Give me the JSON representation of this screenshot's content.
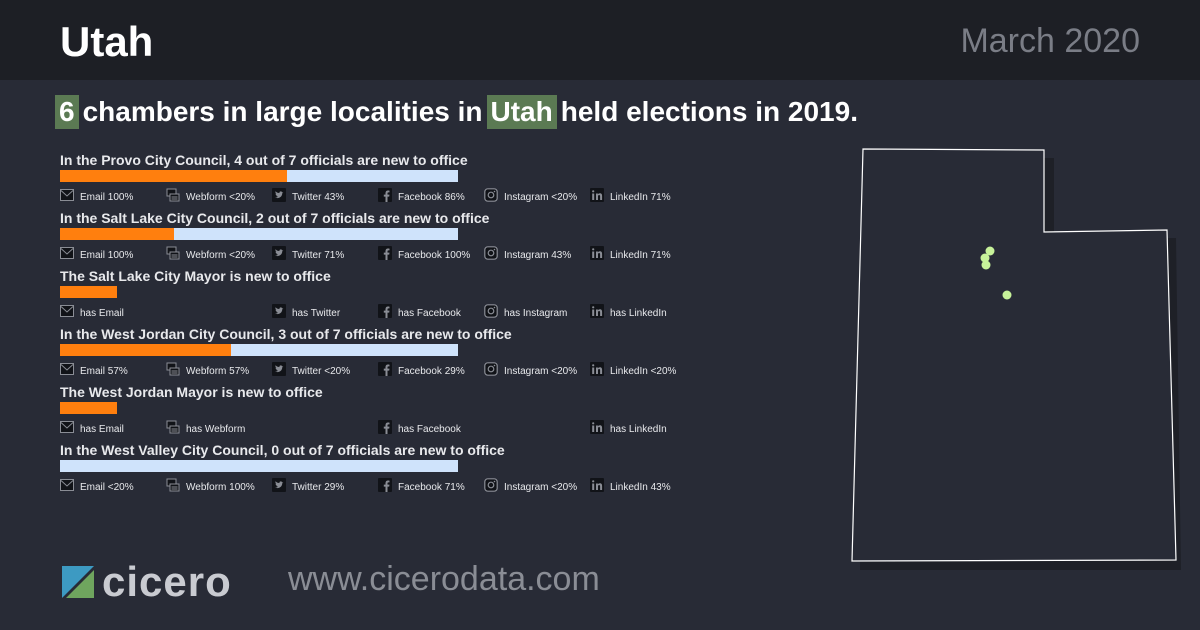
{
  "header": {
    "title": "Utah",
    "date": "March 2020"
  },
  "headline": {
    "count": "6",
    "text_before": "chambers in large localities in",
    "state": "Utah",
    "text_after": "held elections in 2019."
  },
  "colors": {
    "new_bar": "#ff7f0e",
    "total_bar": "#cfe3fb",
    "highlight": "#5b7a53",
    "map_dot": "#c7f29a"
  },
  "chambers": [
    {
      "title": "In the Provo City Council, 4 out of 7 officials are new to office",
      "new": 4,
      "total": 7,
      "channels": [
        {
          "icon": "email-icon",
          "label": "Email 100%"
        },
        {
          "icon": "webform-icon",
          "label": "Webform <20%"
        },
        {
          "icon": "twitter-icon",
          "label": "Twitter 43%"
        },
        {
          "icon": "facebook-icon",
          "label": "Facebook 86%"
        },
        {
          "icon": "instagram-icon",
          "label": "Instagram <20%"
        },
        {
          "icon": "linkedin-icon",
          "label": "LinkedIn 71%"
        }
      ]
    },
    {
      "title": "In the Salt Lake City Council, 2 out of 7 officials are new to office",
      "new": 2,
      "total": 7,
      "channels": [
        {
          "icon": "email-icon",
          "label": "Email 100%"
        },
        {
          "icon": "webform-icon",
          "label": "Webform <20%"
        },
        {
          "icon": "twitter-icon",
          "label": "Twitter 71%"
        },
        {
          "icon": "facebook-icon",
          "label": "Facebook 100%"
        },
        {
          "icon": "instagram-icon",
          "label": "Instagram 43%"
        },
        {
          "icon": "linkedin-icon",
          "label": "LinkedIn 71%"
        }
      ]
    },
    {
      "title": "The Salt Lake City Mayor is new to office",
      "new": 1,
      "total": 1,
      "channels": [
        {
          "icon": "email-icon",
          "label": "has Email"
        },
        null,
        {
          "icon": "twitter-icon",
          "label": "has Twitter"
        },
        {
          "icon": "facebook-icon",
          "label": "has Facebook"
        },
        {
          "icon": "instagram-icon",
          "label": "has Instagram"
        },
        {
          "icon": "linkedin-icon",
          "label": "has LinkedIn"
        }
      ]
    },
    {
      "title": "In the West Jordan City Council, 3 out of 7 officials are new to office",
      "new": 3,
      "total": 7,
      "channels": [
        {
          "icon": "email-icon",
          "label": "Email 57%"
        },
        {
          "icon": "webform-icon",
          "label": "Webform 57%"
        },
        {
          "icon": "twitter-icon",
          "label": "Twitter <20%"
        },
        {
          "icon": "facebook-icon",
          "label": "Facebook 29%"
        },
        {
          "icon": "instagram-icon",
          "label": "Instagram <20%"
        },
        {
          "icon": "linkedin-icon",
          "label": "LinkedIn <20%"
        }
      ]
    },
    {
      "title": "The West Jordan Mayor is new to office",
      "new": 1,
      "total": 1,
      "channels": [
        {
          "icon": "email-icon",
          "label": "has Email"
        },
        {
          "icon": "webform-icon",
          "label": "has Webform"
        },
        null,
        {
          "icon": "facebook-icon",
          "label": "has Facebook"
        },
        null,
        {
          "icon": "linkedin-icon",
          "label": "has LinkedIn"
        }
      ]
    },
    {
      "title": "In the West Valley City Council, 0 out of 7 officials are new to office",
      "new": 0,
      "total": 7,
      "channels": [
        {
          "icon": "email-icon",
          "label": "Email <20%"
        },
        {
          "icon": "webform-icon",
          "label": "Webform 100%"
        },
        {
          "icon": "twitter-icon",
          "label": "Twitter 29%"
        },
        {
          "icon": "facebook-icon",
          "label": "Facebook 71%"
        },
        {
          "icon": "instagram-icon",
          "label": "Instagram <20%"
        },
        {
          "icon": "linkedin-icon",
          "label": "LinkedIn 43%"
        }
      ]
    }
  ],
  "footer": {
    "brand": "cicero",
    "url": "www.cicerodata.com"
  }
}
